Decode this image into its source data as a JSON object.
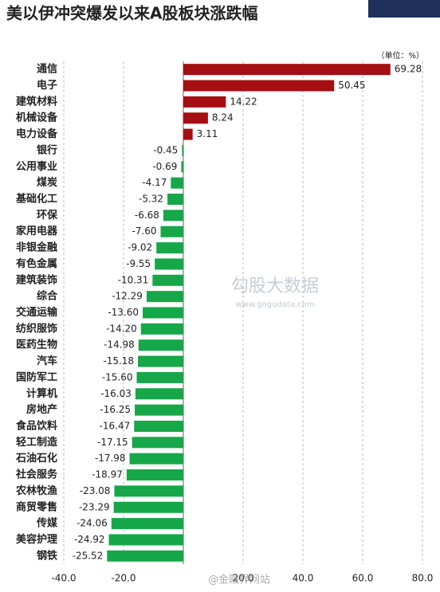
{
  "chart_data": {
    "type": "barh",
    "title": "美以伊冲突爆发以来A股板块涨跌幅",
    "unit_note": "（单位：%）",
    "watermarks": [
      "勾股大数据",
      "www.gogudata.com",
      "@金融界网站"
    ],
    "categories": [
      "通信",
      "电子",
      "建筑材料",
      "机械设备",
      "电力设备",
      "银行",
      "公用事业",
      "煤炭",
      "基础化工",
      "环保",
      "家用电器",
      "非银金融",
      "有色金属",
      "建筑装饰",
      "综合",
      "交通运输",
      "纺织服饰",
      "医药生物",
      "汽车",
      "国防军工",
      "计算机",
      "房地产",
      "食品饮料",
      "轻工制造",
      "石油石化",
      "社会服务",
      "农林牧渔",
      "商贸零售",
      "传媒",
      "美容护理",
      "钢铁"
    ],
    "values": [
      69.28,
      50.45,
      14.22,
      8.24,
      3.11,
      -0.45,
      -0.69,
      -4.17,
      -5.32,
      -6.68,
      -7.6,
      -9.02,
      -9.55,
      -10.31,
      -12.29,
      -13.6,
      -14.2,
      -14.98,
      -15.18,
      -15.6,
      -16.03,
      -16.25,
      -16.47,
      -17.15,
      -17.98,
      -18.97,
      -23.08,
      -23.29,
      -24.06,
      -24.92,
      -25.52
    ],
    "value_labels": [
      "69.28",
      "50.45",
      "14.22",
      "8.24",
      "3.11",
      "-0.45",
      "-0.69",
      "-4.17",
      "-5.32",
      "-6.68",
      "-7.60",
      "-9.02",
      "-9.55",
      "-10.31",
      "-12.29",
      "-13.60",
      "-14.20",
      "-14.98",
      "-15.18",
      "-15.60",
      "-16.03",
      "-16.25",
      "-16.47",
      "-17.15",
      "-17.98",
      "-18.97",
      "-23.08",
      "-23.29",
      "-24.06",
      "-24.92",
      "-25.52"
    ],
    "color_positive": "#a30f12",
    "color_negative": "#16a748",
    "xlim": [
      -40,
      80
    ],
    "xticks": [
      {
        "value": -40,
        "label": "-40.0"
      },
      {
        "value": -20,
        "label": "-20.0"
      },
      {
        "value": 20,
        "label": "20.0"
      },
      {
        "value": 40,
        "label": "40.0"
      },
      {
        "value": 60,
        "label": "60.0"
      },
      {
        "value": 80,
        "label": "80.0"
      }
    ],
    "grid": true
  }
}
